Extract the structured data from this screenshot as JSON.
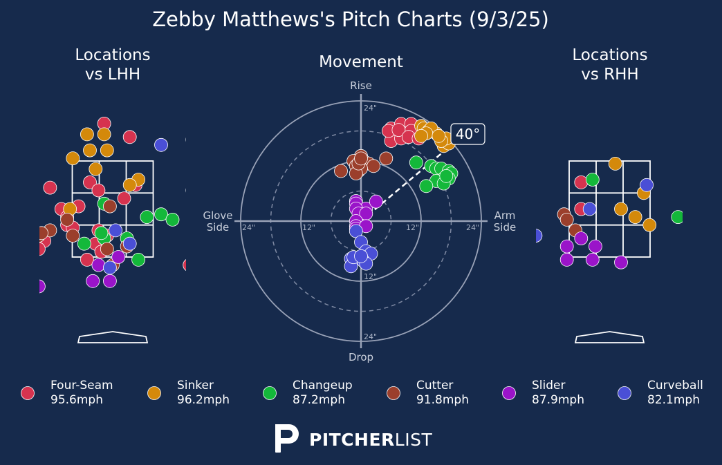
{
  "title": "Zebby Matthews's Pitch Charts (9/3/25)",
  "panels": {
    "lhh_title_line1": "Locations",
    "lhh_title_line2": "vs LHH",
    "movement_title": "Movement",
    "rhh_title_line1": "Locations",
    "rhh_title_line2": "vs RHH"
  },
  "movement_axes": {
    "top": "Rise",
    "bottom": "Drop",
    "left_line1": "Glove",
    "left_line2": "Side",
    "right_line1": "Arm",
    "right_line2": "Side",
    "tick_24_top": "24\"",
    "tick_12_bottom": "12\"",
    "tick_24_bottom": "24\"",
    "tick_24_left": "24\"",
    "tick_12_left": "12\"",
    "tick_12_right": "12\"",
    "tick_24_right": "24\"",
    "arm_angle_label": "40°"
  },
  "branding": {
    "bold": "PITCHER",
    "light": "LIST"
  },
  "chart_data": {
    "type": "scatter",
    "arm_angle_deg": 40,
    "movement_max_in": 24,
    "pitch_types": [
      {
        "name": "Four-Seam",
        "speed": "95.6mph",
        "color": "#d6334f"
      },
      {
        "name": "Sinker",
        "speed": "96.2mph",
        "color": "#d4890b"
      },
      {
        "name": "Changeup",
        "speed": "87.2mph",
        "color": "#14b83a"
      },
      {
        "name": "Cutter",
        "speed": "91.8mph",
        "color": "#9b3f2c"
      },
      {
        "name": "Slider",
        "speed": "87.9mph",
        "color": "#9a14c9"
      },
      {
        "name": "Curveball",
        "speed": "82.1mph",
        "color": "#4a4fd6"
      }
    ],
    "movement": {
      "Four-Seam": [
        [
          6,
          18.5
        ],
        [
          8,
          19.4
        ],
        [
          10,
          19.4
        ],
        [
          7,
          17
        ],
        [
          9,
          17.5
        ],
        [
          6,
          16
        ],
        [
          8,
          16.5
        ],
        [
          11,
          17.5
        ],
        [
          12,
          18
        ],
        [
          10,
          18
        ],
        [
          5.5,
          18
        ],
        [
          7.5,
          18.2
        ],
        [
          9.5,
          16.8
        ],
        [
          11.5,
          16.5
        ]
      ],
      "Sinker": [
        [
          12,
          19
        ],
        [
          12.5,
          18.5
        ],
        [
          13.5,
          18
        ],
        [
          15,
          17.5
        ],
        [
          16.5,
          15
        ],
        [
          17.5,
          15.5
        ],
        [
          17,
          16.5
        ],
        [
          16,
          16
        ],
        [
          14,
          18.5
        ],
        [
          13,
          17.5
        ],
        [
          15.5,
          17
        ],
        [
          12,
          17
        ]
      ],
      "Changeup": [
        [
          11,
          11.7
        ],
        [
          14,
          11
        ],
        [
          15,
          10.5
        ],
        [
          16,
          10.5
        ],
        [
          17.5,
          10
        ],
        [
          18,
          9.5
        ],
        [
          16.5,
          8.5
        ],
        [
          17.5,
          8.5
        ],
        [
          15,
          8
        ],
        [
          13,
          7
        ],
        [
          16.5,
          7.5
        ],
        [
          17,
          9
        ]
      ],
      "Cutter": [
        [
          -4,
          10
        ],
        [
          0,
          13
        ],
        [
          0.5,
          12
        ],
        [
          1.5,
          11.5
        ],
        [
          2.5,
          11
        ],
        [
          -1.5,
          12
        ],
        [
          -1,
          11
        ],
        [
          -0.5,
          10
        ],
        [
          0,
          10.5
        ],
        [
          5,
          12.5
        ],
        [
          -1,
          9.5
        ],
        [
          -0.5,
          11.5
        ],
        [
          0,
          12.5
        ]
      ],
      "Slider": [
        [
          -1,
          4
        ],
        [
          -1,
          3.5
        ],
        [
          1,
          2.5
        ],
        [
          3,
          3.9
        ],
        [
          -1,
          2.5
        ],
        [
          -0.5,
          1.5
        ],
        [
          1,
          1.5
        ],
        [
          -1,
          0
        ],
        [
          -1,
          -1
        ],
        [
          -1,
          -1.5
        ],
        [
          1,
          -1
        ]
      ],
      "Curveball": [
        [
          -1,
          -2
        ],
        [
          0,
          -4.2
        ],
        [
          1,
          -6
        ],
        [
          2,
          -6.5
        ],
        [
          -2,
          -7.5
        ],
        [
          0.5,
          -8
        ],
        [
          -2,
          -9
        ],
        [
          1,
          -8.5
        ],
        [
          -1.5,
          -7.2
        ],
        [
          0,
          -7
        ]
      ]
    },
    "locations_lhh": {
      "Four-Seam": [
        [
          -0.15,
          4.1
        ],
        [
          0.3,
          3.85
        ],
        [
          1.4,
          3.8
        ],
        [
          -1.1,
          2.9
        ],
        [
          -0.4,
          3.0
        ],
        [
          -0.25,
          2.85
        ],
        [
          0.2,
          2.7
        ],
        [
          0.4,
          2.95
        ],
        [
          -0.9,
          2.5
        ],
        [
          -0.6,
          2.55
        ],
        [
          -0.8,
          2.2
        ],
        [
          -0.7,
          2.15
        ],
        [
          -0.25,
          2.1
        ],
        [
          -0.1,
          2.0
        ],
        [
          -0.3,
          1.85
        ],
        [
          -1.2,
          1.9
        ],
        [
          -1.3,
          1.75
        ],
        [
          -0.2,
          1.7
        ],
        [
          -0.45,
          1.55
        ],
        [
          1.35,
          1.45
        ],
        [
          -0.8,
          2.35
        ]
      ],
      "Sinker": [
        [
          -0.45,
          3.9
        ],
        [
          -0.15,
          3.9
        ],
        [
          -0.4,
          3.6
        ],
        [
          -0.1,
          3.6
        ],
        [
          -0.7,
          3.45
        ],
        [
          -0.3,
          3.25
        ],
        [
          0.45,
          3.05
        ],
        [
          0.3,
          2.95
        ],
        [
          -0.75,
          2.5
        ]
      ],
      "Changeup": [
        [
          -0.15,
          2.6
        ],
        [
          0.6,
          2.35
        ],
        [
          0.85,
          2.4
        ],
        [
          1.05,
          2.3
        ],
        [
          1.4,
          2.85
        ],
        [
          0.25,
          1.95
        ],
        [
          -0.15,
          1.95
        ],
        [
          -0.5,
          1.85
        ],
        [
          -0.2,
          2.05
        ],
        [
          0.45,
          1.55
        ]
      ],
      "Cutter": [
        [
          -0.8,
          2.3
        ],
        [
          -0.05,
          2.55
        ],
        [
          -1.35,
          2.05
        ],
        [
          -1.1,
          2.1
        ],
        [
          -0.7,
          2.0
        ],
        [
          -1.3,
          2.0
        ],
        [
          0.25,
          1.8
        ],
        [
          -0.1,
          1.75
        ],
        [
          0.0,
          1.45
        ],
        [
          -1.25,
          2.05
        ]
      ],
      "Slider": [
        [
          -0.25,
          1.45
        ],
        [
          0.1,
          1.6
        ],
        [
          -0.35,
          1.15
        ],
        [
          -0.05,
          1.15
        ],
        [
          -1.3,
          1.05
        ]
      ],
      "Curveball": [
        [
          0.85,
          3.7
        ],
        [
          0.05,
          2.1
        ],
        [
          0.3,
          1.85
        ],
        [
          -0.05,
          1.4
        ]
      ]
    },
    "locations_rhh": {
      "Four-Seam": [
        [
          -0.5,
          3.0
        ],
        [
          -0.5,
          2.5
        ]
      ],
      "Sinker": [
        [
          0.1,
          3.35
        ],
        [
          0.6,
          2.8
        ],
        [
          0.2,
          2.5
        ],
        [
          0.45,
          2.35
        ],
        [
          0.7,
          2.2
        ]
      ],
      "Changeup": [
        [
          -0.3,
          3.05
        ],
        [
          1.2,
          2.35
        ]
      ],
      "Cutter": [
        [
          -0.8,
          2.4
        ],
        [
          -0.75,
          2.3
        ],
        [
          -0.6,
          2.1
        ]
      ],
      "Slider": [
        [
          -0.5,
          1.95
        ],
        [
          -0.75,
          1.8
        ],
        [
          -0.25,
          1.8
        ],
        [
          -0.75,
          1.55
        ],
        [
          -0.3,
          1.55
        ],
        [
          0.2,
          1.5
        ]
      ],
      "Curveball": [
        [
          -0.35,
          2.5
        ],
        [
          0.65,
          2.95
        ],
        [
          -1.3,
          2.0
        ]
      ]
    },
    "zone": {
      "x_half_width": 0.71,
      "z_bottom": 1.6,
      "z_top": 3.4
    }
  }
}
